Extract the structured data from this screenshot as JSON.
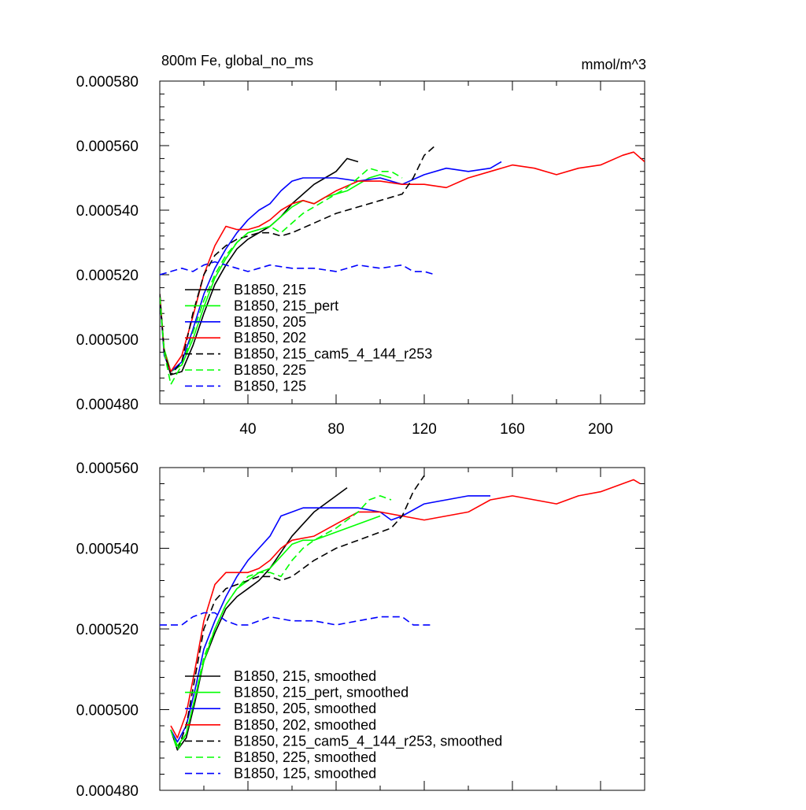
{
  "chart_data": [
    {
      "type": "line",
      "title": "800m Fe, global_no_ms",
      "units": "mmol/m^3",
      "xlim": [
        0,
        220
      ],
      "ylim": [
        0.00048,
        0.00058
      ],
      "x_ticks": [
        "40",
        "80",
        "120",
        "160",
        "200"
      ],
      "y_ticks": [
        "0.000480",
        "0.000500",
        "0.000520",
        "0.000540",
        "0.000560",
        "0.000580"
      ],
      "legend_position": "bottom-left",
      "grid": false,
      "series": [
        {
          "name": "B1850, 215",
          "color": "#000000",
          "dash": "solid",
          "x": [
            0,
            2,
            5,
            10,
            15,
            20,
            25,
            30,
            35,
            40,
            45,
            50,
            55,
            60,
            65,
            70,
            75,
            80,
            85,
            90
          ],
          "y": [
            0.000514,
            0.000496,
            0.000489,
            0.00049,
            0.000498,
            0.000508,
            0.000517,
            0.000523,
            0.000528,
            0.000531,
            0.000533,
            0.000535,
            0.000538,
            0.000542,
            0.000545,
            0.000548,
            0.00055,
            0.000552,
            0.000556,
            0.000555
          ]
        },
        {
          "name": "B1850, 215_pert",
          "color": "#00ff00",
          "dash": "solid",
          "x": [
            0,
            2,
            5,
            10,
            15,
            20,
            25,
            30,
            35,
            40,
            45,
            50,
            55,
            60,
            65,
            70,
            75,
            80,
            85,
            90,
            95,
            100,
            105
          ],
          "y": [
            0.000513,
            0.000497,
            0.00049,
            0.000492,
            0.0005,
            0.00051,
            0.000519,
            0.000525,
            0.00053,
            0.000533,
            0.000534,
            0.000535,
            0.000538,
            0.000541,
            0.000543,
            0.000542,
            0.000544,
            0.000545,
            0.000546,
            0.000548,
            0.00055,
            0.000551,
            0.00055
          ]
        },
        {
          "name": "B1850, 205",
          "color": "#0000ff",
          "dash": "solid",
          "x": [
            0,
            2,
            5,
            10,
            15,
            20,
            25,
            30,
            35,
            40,
            45,
            50,
            55,
            60,
            65,
            70,
            80,
            90,
            100,
            110,
            120,
            130,
            140,
            150,
            155
          ],
          "y": [
            0.000513,
            0.000495,
            0.00049,
            0.000493,
            0.000503,
            0.000514,
            0.000522,
            0.000528,
            0.000533,
            0.000537,
            0.00054,
            0.000542,
            0.000546,
            0.000549,
            0.00055,
            0.00055,
            0.00055,
            0.000549,
            0.00055,
            0.000548,
            0.000551,
            0.000553,
            0.000552,
            0.000553,
            0.000555
          ]
        },
        {
          "name": "B1850, 202",
          "color": "#ff0000",
          "dash": "solid",
          "x": [
            0,
            2,
            5,
            10,
            15,
            20,
            25,
            30,
            35,
            40,
            45,
            50,
            55,
            60,
            65,
            70,
            80,
            90,
            100,
            110,
            120,
            130,
            140,
            150,
            160,
            170,
            180,
            190,
            200,
            210,
            215,
            220
          ],
          "y": [
            0.000514,
            0.000496,
            0.00049,
            0.000495,
            0.000507,
            0.00052,
            0.000529,
            0.000535,
            0.000534,
            0.000534,
            0.000535,
            0.000537,
            0.00054,
            0.000542,
            0.000543,
            0.000542,
            0.000546,
            0.000549,
            0.000549,
            0.000548,
            0.000548,
            0.000547,
            0.00055,
            0.000552,
            0.000554,
            0.000553,
            0.000551,
            0.000553,
            0.000554,
            0.000557,
            0.000558,
            0.000555
          ]
        },
        {
          "name": "B1850, 215_cam5_4_144_r253",
          "color": "#000000",
          "dash": "dashed",
          "x": [
            0,
            2,
            5,
            10,
            15,
            20,
            25,
            30,
            35,
            40,
            45,
            50,
            55,
            60,
            70,
            80,
            90,
            100,
            110,
            115,
            120,
            125
          ],
          "y": [
            0.000514,
            0.000496,
            0.000489,
            0.000493,
            0.000508,
            0.00052,
            0.000526,
            0.000529,
            0.000531,
            0.000532,
            0.000533,
            0.000533,
            0.000532,
            0.000533,
            0.000536,
            0.000539,
            0.000541,
            0.000543,
            0.000545,
            0.00055,
            0.000557,
            0.00056
          ]
        },
        {
          "name": "B1850, 225",
          "color": "#00ff00",
          "dash": "dashed",
          "x": [
            0,
            2,
            5,
            10,
            15,
            20,
            25,
            30,
            35,
            40,
            45,
            50,
            55,
            60,
            65,
            70,
            75,
            80,
            85,
            90,
            95,
            100,
            105,
            110
          ],
          "y": [
            0.000513,
            0.000496,
            0.000486,
            0.000492,
            0.000502,
            0.000512,
            0.00052,
            0.000526,
            0.00053,
            0.000533,
            0.000534,
            0.000535,
            0.000533,
            0.000536,
            0.000539,
            0.000541,
            0.000543,
            0.000545,
            0.000547,
            0.00055,
            0.000553,
            0.000552,
            0.000552,
            0.00055
          ]
        },
        {
          "name": "B1850, 125",
          "color": "#0000ff",
          "dash": "dashed",
          "x": [
            0,
            5,
            10,
            15,
            20,
            25,
            30,
            35,
            40,
            45,
            50,
            60,
            70,
            80,
            90,
            100,
            110,
            115,
            120,
            125
          ],
          "y": [
            0.00052,
            0.000521,
            0.000522,
            0.000521,
            0.000523,
            0.000524,
            0.000523,
            0.000522,
            0.000521,
            0.000522,
            0.000523,
            0.000522,
            0.000522,
            0.000521,
            0.000523,
            0.000522,
            0.000523,
            0.000521,
            0.000521,
            0.00052
          ]
        }
      ]
    },
    {
      "type": "line",
      "xlim": [
        0,
        220
      ],
      "ylim": [
        0.00048,
        0.00056
      ],
      "x_ticks": [],
      "y_ticks": [
        "0.000480",
        "0.000500",
        "0.000520",
        "0.000540",
        "0.000560"
      ],
      "legend_position": "bottom-left",
      "grid": false,
      "series": [
        {
          "name": "B1850, 215, smoothed",
          "color": "#000000",
          "dash": "solid",
          "x": [
            5,
            8,
            12,
            16,
            20,
            25,
            30,
            35,
            40,
            45,
            50,
            55,
            60,
            65,
            70,
            75,
            80,
            85
          ],
          "y": [
            0.000495,
            0.00049,
            0.000493,
            0.000502,
            0.000512,
            0.000519,
            0.000525,
            0.000528,
            0.00053,
            0.000532,
            0.000535,
            0.000539,
            0.000543,
            0.000546,
            0.000549,
            0.000551,
            0.000553,
            0.000555
          ]
        },
        {
          "name": "B1850, 215_pert, smoothed",
          "color": "#00ff00",
          "dash": "solid",
          "x": [
            5,
            8,
            12,
            16,
            20,
            25,
            30,
            35,
            40,
            45,
            50,
            55,
            60,
            65,
            70,
            80,
            90,
            100
          ],
          "y": [
            0.000495,
            0.000491,
            0.000494,
            0.000503,
            0.000512,
            0.00052,
            0.000526,
            0.00053,
            0.000532,
            0.000534,
            0.000535,
            0.000538,
            0.000541,
            0.000542,
            0.000542,
            0.000544,
            0.000546,
            0.000548
          ]
        },
        {
          "name": "B1850, 205, smoothed",
          "color": "#0000ff",
          "dash": "solid",
          "x": [
            5,
            8,
            12,
            16,
            20,
            25,
            30,
            35,
            40,
            45,
            50,
            55,
            60,
            65,
            70,
            80,
            90,
            100,
            105,
            110,
            120,
            130,
            140,
            150
          ],
          "y": [
            0.000495,
            0.000492,
            0.000496,
            0.000505,
            0.000515,
            0.000522,
            0.000528,
            0.000533,
            0.000537,
            0.00054,
            0.000543,
            0.000548,
            0.000549,
            0.00055,
            0.00055,
            0.00055,
            0.00055,
            0.000549,
            0.000547,
            0.000548,
            0.000551,
            0.000552,
            0.000553,
            0.000553
          ]
        },
        {
          "name": "B1850, 202, smoothed",
          "color": "#ff0000",
          "dash": "solid",
          "x": [
            5,
            8,
            12,
            16,
            20,
            25,
            30,
            35,
            40,
            45,
            50,
            55,
            60,
            70,
            80,
            90,
            100,
            110,
            120,
            130,
            140,
            150,
            160,
            170,
            180,
            190,
            200,
            210,
            215,
            218
          ],
          "y": [
            0.000496,
            0.000493,
            0.000499,
            0.00051,
            0.000522,
            0.000531,
            0.000534,
            0.000534,
            0.000534,
            0.000535,
            0.000537,
            0.00054,
            0.000542,
            0.000543,
            0.000546,
            0.000549,
            0.000549,
            0.000548,
            0.000547,
            0.000548,
            0.000549,
            0.000552,
            0.000553,
            0.000552,
            0.000551,
            0.000553,
            0.000554,
            0.000556,
            0.000557,
            0.000556
          ]
        },
        {
          "name": "B1850, 215_cam5_4_144_r253, smoothed",
          "color": "#000000",
          "dash": "dashed",
          "x": [
            5,
            8,
            12,
            16,
            20,
            25,
            30,
            35,
            40,
            45,
            50,
            55,
            60,
            70,
            80,
            90,
            100,
            105,
            110,
            115,
            120
          ],
          "y": [
            0.000495,
            0.00049,
            0.000496,
            0.000508,
            0.00052,
            0.000527,
            0.00053,
            0.000531,
            0.000532,
            0.000533,
            0.000533,
            0.000532,
            0.000533,
            0.000537,
            0.00054,
            0.000542,
            0.000544,
            0.000545,
            0.000548,
            0.000554,
            0.000558
          ]
        },
        {
          "name": "B1850, 225, smoothed",
          "color": "#00ff00",
          "dash": "dashed",
          "x": [
            5,
            8,
            12,
            16,
            20,
            25,
            30,
            35,
            40,
            45,
            50,
            55,
            60,
            65,
            70,
            80,
            90,
            95,
            100,
            105
          ],
          "y": [
            0.000495,
            0.00049,
            0.000494,
            0.000503,
            0.000513,
            0.00052,
            0.000526,
            0.00053,
            0.000533,
            0.000534,
            0.000534,
            0.000533,
            0.000537,
            0.00054,
            0.000542,
            0.000545,
            0.000549,
            0.000552,
            0.000553,
            0.000552
          ]
        },
        {
          "name": "B1850, 125, smoothed",
          "color": "#0000ff",
          "dash": "dashed",
          "x": [
            0,
            5,
            10,
            15,
            20,
            25,
            30,
            35,
            40,
            45,
            50,
            60,
            70,
            80,
            90,
            100,
            110,
            115,
            120,
            123
          ],
          "y": [
            0.000521,
            0.000521,
            0.000521,
            0.000523,
            0.000524,
            0.000524,
            0.000522,
            0.000521,
            0.000521,
            0.000522,
            0.000523,
            0.000522,
            0.000522,
            0.000521,
            0.000522,
            0.000523,
            0.000523,
            0.000521,
            0.000521,
            0.000521
          ]
        }
      ]
    }
  ]
}
